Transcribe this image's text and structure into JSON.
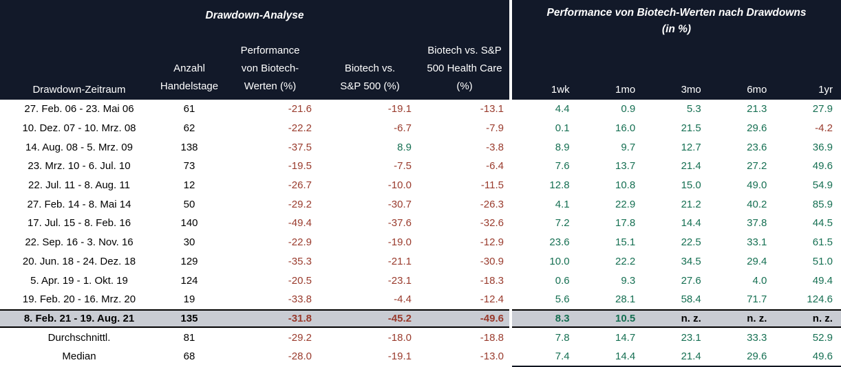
{
  "colors": {
    "header_bg": "#121929",
    "negative": "#993a2c",
    "positive": "#156f52",
    "highlight_bg": "#c9ccd3"
  },
  "chart_data": {
    "type": "table",
    "header": {
      "left_title": "Drawdown-Analyse",
      "right_title_line1": "Performance von Biotech-Werten nach Drawdowns",
      "right_title_line2": "(in %)"
    },
    "columns": {
      "zeitraum": "Drawdown-Zeitraum",
      "anzahl": [
        "Anzahl",
        "Handelstage"
      ],
      "performance": [
        "Performance",
        "von Biotech-",
        "Werten (%)"
      ],
      "vs_sp500": [
        "Biotech vs.",
        "S&P 500 (%)"
      ],
      "vs_healthcare": [
        "Biotech vs. S&P",
        "500 Health Care",
        "(%)"
      ],
      "horizons": [
        "1wk",
        "1mo",
        "3mo",
        "6mo",
        "1yr"
      ]
    },
    "rows": [
      {
        "cells": [
          "27. Feb. 06 - 23. Mai 06",
          "61",
          "-21.6",
          "-19.1",
          "-13.1",
          "4.4",
          "0.9",
          "5.3",
          "21.3",
          "27.9"
        ]
      },
      {
        "cells": [
          "10. Dez. 07 - 10. Mrz. 08",
          "62",
          "-22.2",
          "-6.7",
          "-7.9",
          "0.1",
          "16.0",
          "21.5",
          "29.6",
          "-4.2"
        ]
      },
      {
        "cells": [
          "14. Aug. 08 - 5. Mrz. 09",
          "138",
          "-37.5",
          "8.9",
          "-3.8",
          "8.9",
          "9.7",
          "12.7",
          "23.6",
          "36.9"
        ]
      },
      {
        "cells": [
          "23. Mrz. 10 - 6. Jul. 10",
          "73",
          "-19.5",
          "-7.5",
          "-6.4",
          "7.6",
          "13.7",
          "21.4",
          "27.2",
          "49.6"
        ]
      },
      {
        "cells": [
          "22. Jul. 11 - 8. Aug. 11",
          "12",
          "-26.7",
          "-10.0",
          "-11.5",
          "12.8",
          "10.8",
          "15.0",
          "49.0",
          "54.9"
        ]
      },
      {
        "cells": [
          "27. Feb. 14 - 8. Mai 14",
          "50",
          "-29.2",
          "-30.7",
          "-26.3",
          "4.1",
          "22.9",
          "21.2",
          "40.2",
          "85.9"
        ]
      },
      {
        "cells": [
          "17. Jul. 15 - 8. Feb. 16",
          "140",
          "-49.4",
          "-37.6",
          "-32.6",
          "7.2",
          "17.8",
          "14.4",
          "37.8",
          "44.5"
        ]
      },
      {
        "cells": [
          "22. Sep. 16 - 3. Nov. 16",
          "30",
          "-22.9",
          "-19.0",
          "-12.9",
          "23.6",
          "15.1",
          "22.5",
          "33.1",
          "61.5"
        ]
      },
      {
        "cells": [
          "20. Jun. 18 - 24. Dez. 18",
          "129",
          "-35.3",
          "-21.1",
          "-30.9",
          "10.0",
          "22.2",
          "34.5",
          "29.4",
          "51.0"
        ]
      },
      {
        "cells": [
          "5. Apr. 19 - 1. Okt. 19",
          "124",
          "-20.5",
          "-23.1",
          "-18.3",
          "0.6",
          "9.3",
          "27.6",
          "4.0",
          "49.4"
        ]
      },
      {
        "cells": [
          "19. Feb. 20 - 16. Mrz. 20",
          "19",
          "-33.8",
          "-4.4",
          "-12.4",
          "5.6",
          "28.1",
          "58.4",
          "71.7",
          "124.6"
        ]
      },
      {
        "cells": [
          "8. Feb. 21 - 19. Aug. 21",
          "135",
          "-31.8",
          "-45.2",
          "-49.6",
          "8.3",
          "10.5",
          "n. z.",
          "n. z.",
          "n. z."
        ],
        "highlight": true
      },
      {
        "cells": [
          "Durchschnittl.",
          "81",
          "-29.2",
          "-18.0",
          "-18.8",
          "7.8",
          "14.7",
          "23.1",
          "33.3",
          "52.9"
        ]
      },
      {
        "cells": [
          "Median",
          "68",
          "-28.0",
          "-19.1",
          "-13.0",
          "7.4",
          "14.4",
          "21.4",
          "29.6",
          "49.6"
        ]
      }
    ]
  }
}
